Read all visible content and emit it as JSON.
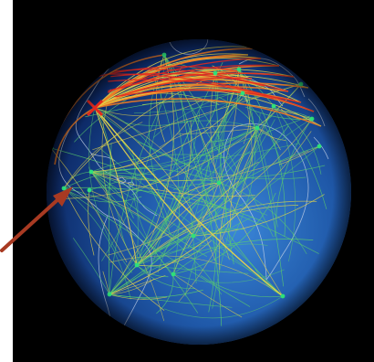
{
  "image": {
    "subject": "globe-with-network-arcs",
    "colors": {
      "background": "#000000",
      "page": "#ffffff",
      "ocean_deep": "#0a1a4a",
      "ocean_light": "#2f74c8",
      "coastline": "#c8d4e8",
      "arc_green": "#5cd06a",
      "arc_yellow": "#e6d54a",
      "arc_orange": "#f07a22",
      "arc_red": "#e4281e",
      "arrow": "#a83a22",
      "node": "#2ee07a"
    },
    "icons": [
      "pointer-arrow"
    ]
  }
}
